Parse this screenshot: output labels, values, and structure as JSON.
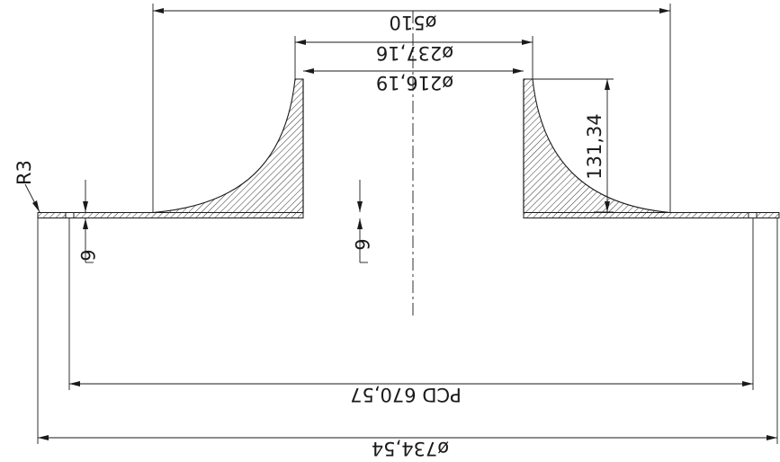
{
  "drawing": {
    "dimensions": {
      "outer_diameter": "ø734,54",
      "pcd": "PCD  670,57",
      "hub_base_diameter": "ø510",
      "hub_top_diameter": "ø237,16",
      "bore_diameter": "ø216,19",
      "hub_height": "131,34",
      "flange_thickness_left": "6",
      "flange_thickness_center": "6",
      "edge_radius": "R3"
    },
    "colors": {
      "line": "#1a1a1a",
      "background": "#ffffff"
    }
  }
}
